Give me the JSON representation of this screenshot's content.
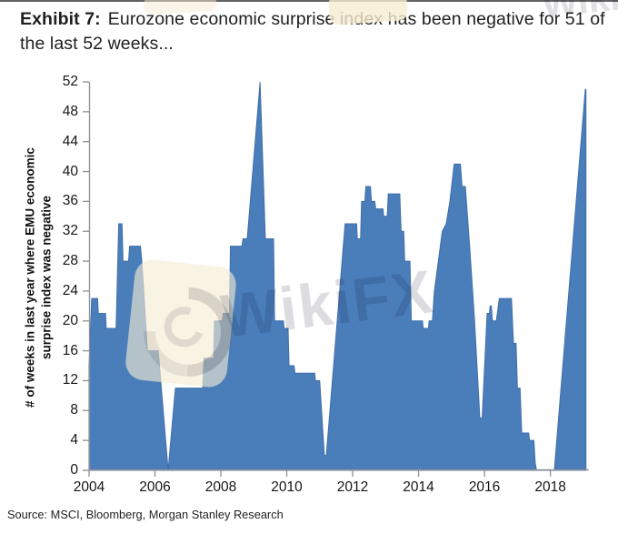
{
  "header": {
    "exhibit_label": "Exhibit 7:",
    "title_text": "Eurozone economic surprise index has been negative for 51 of the last 52 weeks..."
  },
  "source_note": "Source: MSCI, Bloomberg, Morgan Stanley Research",
  "watermark": {
    "text": "WikiFX",
    "text_top": "WikiFX"
  },
  "chart_data": {
    "type": "area",
    "title": "Eurozone economic surprise index has been negative for 51 of the last 52 weeks...",
    "xlabel": "",
    "ylabel_line1": "# of weeks in last  year where EMU economic",
    "ylabel_line2": "surprise index was negative",
    "xlim": [
      2004,
      2019.17
    ],
    "ylim": [
      0,
      52
    ],
    "x_ticks": [
      2004,
      2006,
      2008,
      2010,
      2012,
      2014,
      2016,
      2018
    ],
    "y_ticks": [
      0,
      4,
      8,
      12,
      16,
      20,
      24,
      28,
      32,
      36,
      40,
      44,
      48,
      52
    ],
    "grid": false,
    "legend": "none",
    "area_color": "#4a7ebb",
    "area_edge_color": "#3f6ea8",
    "axis_color": "#8f8f8f",
    "series_name": "# of weeks in last year where EMU economic surprise index was negative",
    "points": [
      [
        2004.0,
        14
      ],
      [
        2004.08,
        23
      ],
      [
        2004.26,
        23
      ],
      [
        2004.28,
        21
      ],
      [
        2004.5,
        21
      ],
      [
        2004.52,
        19
      ],
      [
        2004.82,
        19
      ],
      [
        2004.9,
        33
      ],
      [
        2005.0,
        33
      ],
      [
        2005.03,
        28
      ],
      [
        2005.2,
        28
      ],
      [
        2005.23,
        30
      ],
      [
        2005.56,
        30
      ],
      [
        2005.6,
        28
      ],
      [
        2005.66,
        24
      ],
      [
        2005.77,
        16
      ],
      [
        2006.1,
        16
      ],
      [
        2006.4,
        0
      ],
      [
        2006.62,
        11
      ],
      [
        2007.45,
        11
      ],
      [
        2007.49,
        15
      ],
      [
        2007.78,
        15
      ],
      [
        2007.81,
        20
      ],
      [
        2008.04,
        20
      ],
      [
        2008.07,
        21
      ],
      [
        2008.26,
        21
      ],
      [
        2008.29,
        30
      ],
      [
        2008.64,
        30
      ],
      [
        2008.67,
        31
      ],
      [
        2008.8,
        31
      ],
      [
        2009.19,
        52
      ],
      [
        2009.35,
        31
      ],
      [
        2009.6,
        31
      ],
      [
        2009.63,
        20
      ],
      [
        2009.9,
        20
      ],
      [
        2009.92,
        19
      ],
      [
        2010.04,
        19
      ],
      [
        2010.07,
        14
      ],
      [
        2010.22,
        14
      ],
      [
        2010.25,
        13
      ],
      [
        2010.85,
        13
      ],
      [
        2010.87,
        12
      ],
      [
        2011.0,
        12
      ],
      [
        2011.14,
        2
      ],
      [
        2011.2,
        2
      ],
      [
        2011.77,
        33
      ],
      [
        2012.12,
        33
      ],
      [
        2012.14,
        31
      ],
      [
        2012.24,
        31
      ],
      [
        2012.27,
        36
      ],
      [
        2012.37,
        36
      ],
      [
        2012.4,
        38
      ],
      [
        2012.54,
        38
      ],
      [
        2012.57,
        36
      ],
      [
        2012.67,
        36
      ],
      [
        2012.7,
        35
      ],
      [
        2012.92,
        35
      ],
      [
        2012.94,
        34
      ],
      [
        2013.05,
        34
      ],
      [
        2013.08,
        37
      ],
      [
        2013.43,
        37
      ],
      [
        2013.47,
        32
      ],
      [
        2013.55,
        32
      ],
      [
        2013.58,
        28
      ],
      [
        2013.74,
        28
      ],
      [
        2013.78,
        20
      ],
      [
        2014.12,
        20
      ],
      [
        2014.14,
        19
      ],
      [
        2014.3,
        19
      ],
      [
        2014.32,
        20
      ],
      [
        2014.42,
        20
      ],
      [
        2014.48,
        24
      ],
      [
        2014.6,
        28
      ],
      [
        2014.72,
        32
      ],
      [
        2014.84,
        33
      ],
      [
        2014.95,
        36
      ],
      [
        2015.08,
        41
      ],
      [
        2015.27,
        41
      ],
      [
        2015.32,
        38
      ],
      [
        2015.42,
        38
      ],
      [
        2015.55,
        30
      ],
      [
        2015.7,
        20
      ],
      [
        2015.86,
        7
      ],
      [
        2015.93,
        7
      ],
      [
        2016.08,
        21
      ],
      [
        2016.15,
        21
      ],
      [
        2016.17,
        22
      ],
      [
        2016.21,
        22
      ],
      [
        2016.24,
        20
      ],
      [
        2016.36,
        20
      ],
      [
        2016.45,
        23
      ],
      [
        2016.82,
        23
      ],
      [
        2016.88,
        17
      ],
      [
        2016.96,
        17
      ],
      [
        2017.0,
        11
      ],
      [
        2017.08,
        11
      ],
      [
        2017.13,
        5
      ],
      [
        2017.34,
        5
      ],
      [
        2017.37,
        4
      ],
      [
        2017.5,
        4
      ],
      [
        2017.54,
        1
      ],
      [
        2017.58,
        0
      ],
      [
        2018.12,
        0
      ],
      [
        2019.06,
        51
      ],
      [
        2019.08,
        51
      ]
    ]
  }
}
